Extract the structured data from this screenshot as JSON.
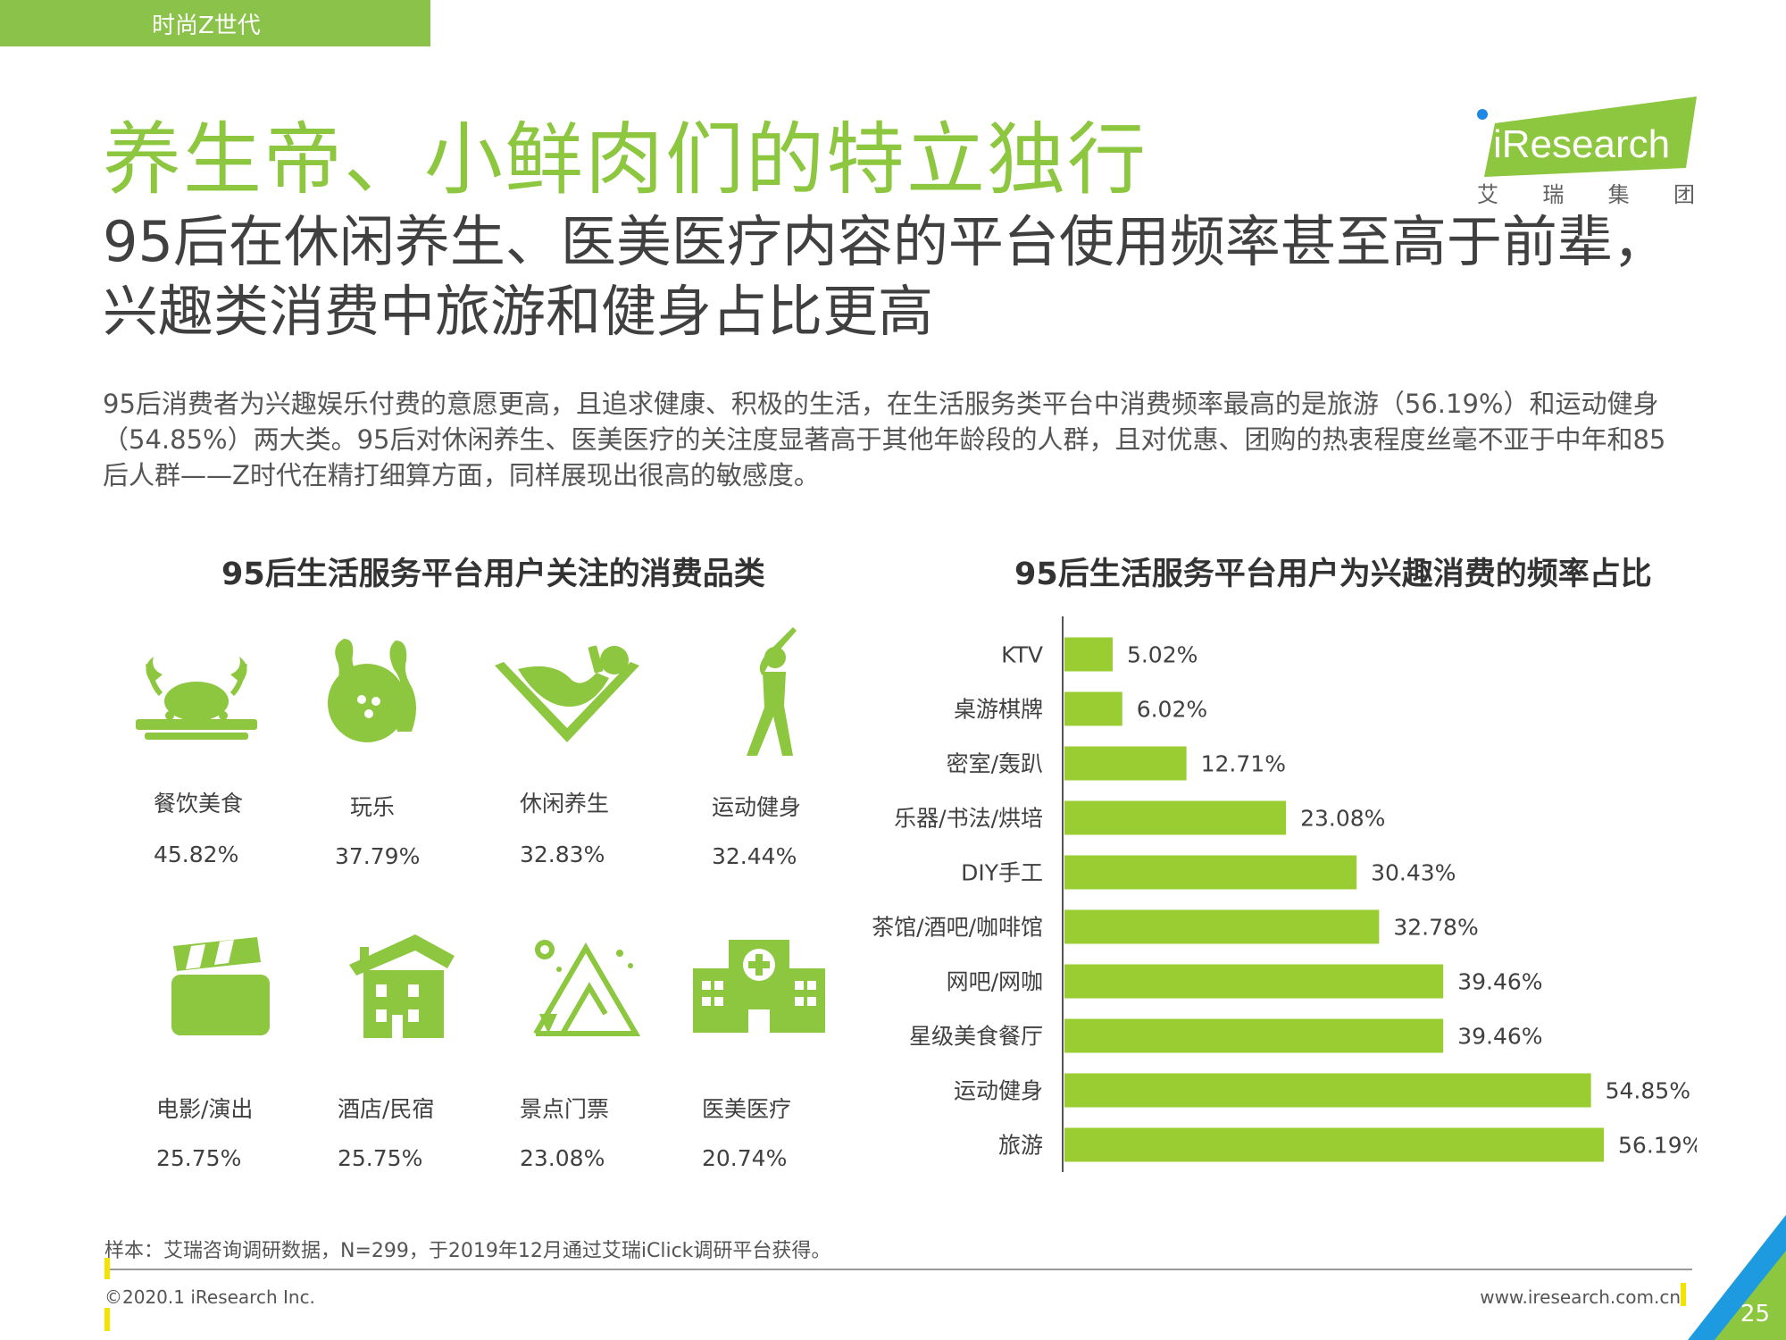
{
  "header": {
    "tag": "时尚Z世代",
    "title": "养生帝、小鲜肉们的特立独行",
    "subtitle": "95后在休闲养生、医美医疗内容的平台使用频率甚至高于前辈，兴趣类消费中旅游和健身占比更高",
    "description": "95后消费者为兴趣娱乐付费的意愿更高，且追求健康、积极的生活，在生活服务类平台中消费频率最高的是旅游（56.19%）和运动健身（54.85%）两大类。95后对休闲养生、医美医疗的关注度显著高于其他年龄段的人群，且对优惠、团购的热衷程度丝毫不亚于中年和85后人群——Z时代在精打细算方面，同样展现出很高的敏感度。"
  },
  "logo": {
    "brand": "iResearch",
    "cn": [
      "艾",
      "瑞",
      "集",
      "团"
    ]
  },
  "colors": {
    "green": "#8dc63f",
    "bar": "#9acd32",
    "text": "#404040"
  },
  "left_panel": {
    "title": "95后生活服务平台用户关注的消费品类",
    "categories": [
      {
        "icon": "food-icon",
        "label": "餐饮美食",
        "value": "45.82%"
      },
      {
        "icon": "bowling-icon",
        "label": "玩乐",
        "value": "37.79%"
      },
      {
        "icon": "relax-icon",
        "label": "休闲养生",
        "value": "32.83%"
      },
      {
        "icon": "golf-icon",
        "label": "运动健身",
        "value": "32.44%"
      },
      {
        "icon": "clapper-icon",
        "label": "电影/演出",
        "value": "25.75%"
      },
      {
        "icon": "hotel-icon",
        "label": "酒店/民宿",
        "value": "25.75%"
      },
      {
        "icon": "mountain-icon",
        "label": "景点门票",
        "value": "23.08%"
      },
      {
        "icon": "hospital-icon",
        "label": "医美医疗",
        "value": "20.74%"
      }
    ]
  },
  "chart_data": {
    "type": "bar",
    "orientation": "horizontal",
    "title": "95后生活服务平台用户为兴趣消费的频率占比",
    "categories": [
      "KTV",
      "桌游棋牌",
      "密室/轰趴",
      "乐器/书法/烘培",
      "DIY手工",
      "茶馆/酒吧/咖啡馆",
      "网吧/网咖",
      "星级美食餐厅",
      "运动健身",
      "旅游"
    ],
    "values": [
      5.02,
      6.02,
      12.71,
      23.08,
      30.43,
      32.78,
      39.46,
      39.46,
      54.85,
      56.19
    ],
    "labels": [
      "5.02%",
      "6.02%",
      "12.71%",
      "23.08%",
      "30.43%",
      "32.78%",
      "39.46%",
      "39.46%",
      "54.85%",
      "56.19%"
    ],
    "xlim": [
      0,
      60
    ],
    "unit": "%"
  },
  "footer": {
    "note": "样本：艾瑞咨询调研数据，N=299，于2019年12月通过艾瑞iClick调研平台获得。",
    "copyright": "©2020.1 iResearch Inc.",
    "website": "www.iresearch.com.cn",
    "page": "25"
  }
}
